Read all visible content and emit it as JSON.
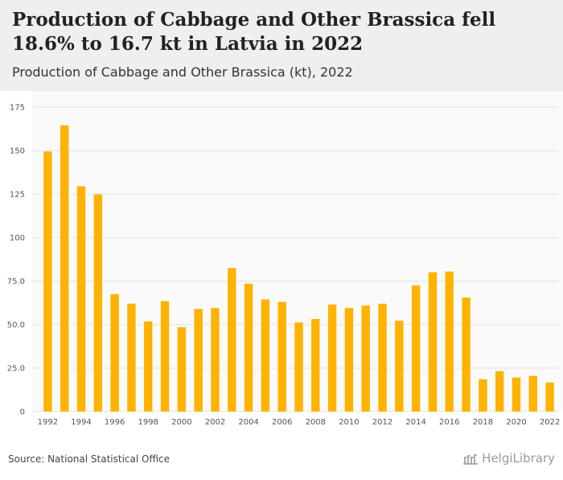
{
  "header": {
    "title": "Production of Cabbage and Other Brassica fell 18.6% to 16.7 kt in Latvia in 2022",
    "subtitle": "Production of Cabbage and Other Brassica (kt), 2022"
  },
  "footer": {
    "source": "Source: National Statistical Office",
    "brand": "HelgiLibrary"
  },
  "colors": {
    "bar": "#FFB300",
    "grid": "#e3e3e3",
    "plot_bg": "#fafafa"
  },
  "chart_data": {
    "type": "bar",
    "categories": [
      "1992",
      "1993",
      "1994",
      "1995",
      "1996",
      "1997",
      "1998",
      "1999",
      "2000",
      "2001",
      "2002",
      "2003",
      "2004",
      "2005",
      "2006",
      "2007",
      "2008",
      "2009",
      "2010",
      "2011",
      "2012",
      "2013",
      "2014",
      "2015",
      "2016",
      "2017",
      "2018",
      "2019",
      "2020",
      "2021",
      "2022"
    ],
    "values": [
      149.5,
      164.5,
      129.5,
      124.8,
      67.5,
      62.0,
      51.8,
      63.5,
      48.5,
      59.0,
      59.5,
      82.5,
      73.5,
      64.5,
      63.0,
      51.2,
      53.2,
      61.5,
      59.5,
      61.0,
      62.0,
      52.2,
      72.5,
      80.0,
      80.5,
      65.5,
      18.5,
      23.2,
      19.6,
      20.5,
      16.7
    ],
    "x_tick_labels": [
      "1992",
      "1994",
      "1996",
      "1998",
      "2000",
      "2002",
      "2004",
      "2006",
      "2008",
      "2010",
      "2012",
      "2014",
      "2016",
      "2018",
      "2020",
      "2022"
    ],
    "y_ticks": [
      0,
      25,
      50,
      75,
      100,
      125,
      150,
      175
    ],
    "y_tick_labels": [
      "0",
      "25.0",
      "50.0",
      "75.0",
      "100",
      "125",
      "150",
      "175"
    ],
    "ylim": [
      0,
      175
    ],
    "grid": true,
    "legend": "none"
  }
}
